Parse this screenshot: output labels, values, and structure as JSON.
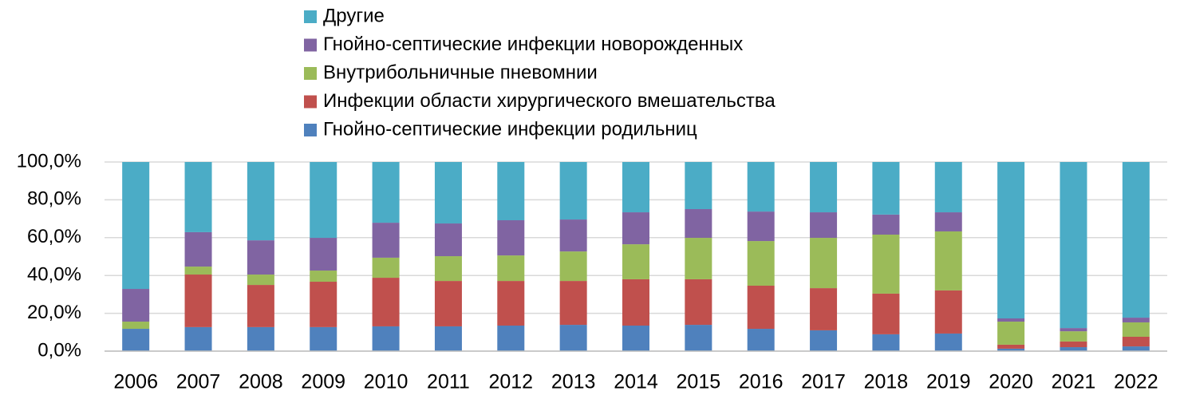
{
  "chart_data": {
    "type": "stacked-bar",
    "categories": [
      "2006",
      "2007",
      "2008",
      "2009",
      "2010",
      "2011",
      "2012",
      "2013",
      "2014",
      "2015",
      "2016",
      "2017",
      "2018",
      "2019",
      "2020",
      "2021",
      "2022"
    ],
    "series": [
      {
        "name": "Гнойно-септические инфекции родильниц",
        "color": "#4f81bd",
        "values": [
          11.8,
          12.7,
          12.7,
          12.7,
          13.1,
          13.1,
          13.5,
          13.9,
          13.5,
          13.9,
          11.8,
          11.0,
          8.9,
          9.3,
          1.3,
          2.1,
          2.5
        ]
      },
      {
        "name": "Инфекции области хирургического вмешательства",
        "color": "#c0504d",
        "values": [
          0,
          27.8,
          22.3,
          24.0,
          25.7,
          24.0,
          23.6,
          23.2,
          24.5,
          24.1,
          22.8,
          22.3,
          21.5,
          22.8,
          2.1,
          3.0,
          5.1
        ]
      },
      {
        "name": "Внутрибольничные пневомнии",
        "color": "#9bbb59",
        "values": [
          3.8,
          4.2,
          5.5,
          5.9,
          10.6,
          13.1,
          13.5,
          15.6,
          18.5,
          21.9,
          23.6,
          26.6,
          31.2,
          31.2,
          12.2,
          5.4,
          7.6
        ]
      },
      {
        "name": "Гнойно-септические инфекции новорожденных",
        "color": "#8064a2",
        "values": [
          17.3,
          18.2,
          18.1,
          17.3,
          18.5,
          17.3,
          18.6,
          16.9,
          16.9,
          15.2,
          15.6,
          13.5,
          10.6,
          10.1,
          1.7,
          1.7,
          2.5
        ]
      },
      {
        "name": "Другие",
        "color": "#4bacc6",
        "values": [
          67.1,
          37.1,
          41.4,
          40.1,
          32.1,
          32.5,
          30.8,
          30.4,
          26.6,
          24.9,
          26.2,
          26.6,
          27.8,
          26.6,
          82.7,
          87.8,
          82.3
        ]
      }
    ],
    "ylim": [
      0,
      100
    ],
    "yticks": [
      {
        "value": 0,
        "label": "0,0%"
      },
      {
        "value": 20,
        "label": "20,0%"
      },
      {
        "value": 40,
        "label": "40,0%"
      },
      {
        "value": 60,
        "label": "60,0%"
      },
      {
        "value": 80,
        "label": "80,0%"
      },
      {
        "value": 100,
        "label": "100,0%"
      }
    ],
    "grid": true
  }
}
